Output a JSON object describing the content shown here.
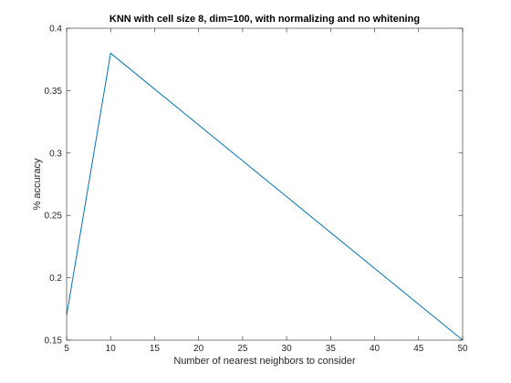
{
  "chart_data": {
    "type": "line",
    "title": "KNN with cell size 8, dim=100, with normalizing and no whitening",
    "xlabel": "Number of nearest neighbors to consider",
    "ylabel": "% accuracy",
    "xlim": [
      5,
      50
    ],
    "ylim": [
      0.15,
      0.4
    ],
    "xticks": [
      5,
      10,
      15,
      20,
      25,
      30,
      35,
      40,
      45,
      50
    ],
    "yticks": [
      0.15,
      0.2,
      0.25,
      0.3,
      0.35,
      0.4
    ],
    "xtick_labels": [
      "5",
      "10",
      "15",
      "20",
      "25",
      "30",
      "35",
      "40",
      "45",
      "50"
    ],
    "ytick_labels": [
      "0.15",
      "0.2",
      "0.25",
      "0.3",
      "0.35",
      "0.4"
    ],
    "grid": false,
    "box": true,
    "series": [
      {
        "x": [
          5,
          10,
          50
        ],
        "y": [
          0.17,
          0.38,
          0.15
        ],
        "color": "#0072bd"
      }
    ]
  }
}
